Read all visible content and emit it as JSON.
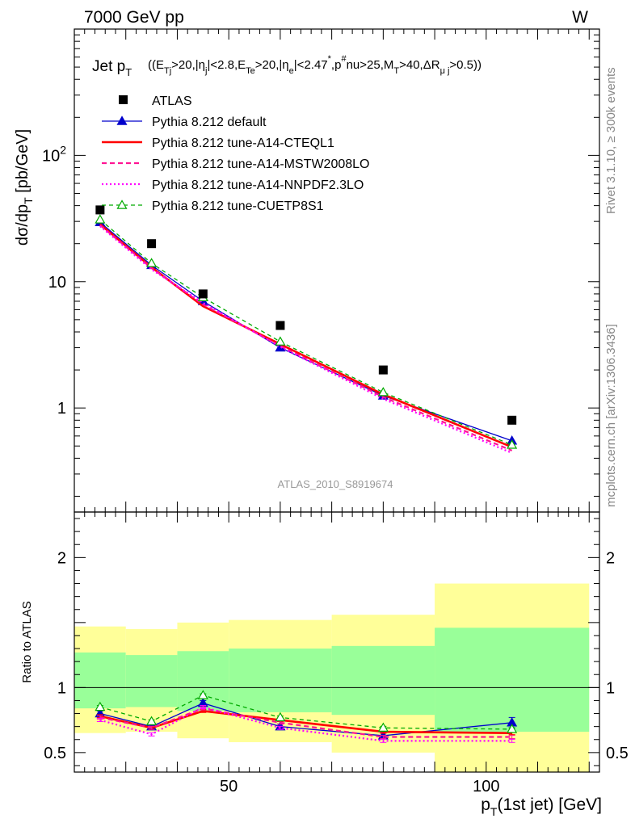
{
  "header": {
    "left": "7000 GeV pp",
    "right": "W"
  },
  "title": {
    "main": "Jet p",
    "main_sub": "T",
    "cuts": "((E",
    "cuts_parts": [
      {
        "t": "((E",
        "s": ""
      },
      {
        "t": "Tj",
        "s": "sub"
      },
      {
        "t": ">20,|η",
        "s": ""
      },
      {
        "t": "j",
        "s": "sub"
      },
      {
        "t": "|<2.8,E",
        "s": ""
      },
      {
        "t": "Te",
        "s": "sub"
      },
      {
        "t": ">20,|η",
        "s": ""
      },
      {
        "t": "e",
        "s": "sub"
      },
      {
        "t": "|<2.47",
        "s": ""
      },
      {
        "t": "*",
        "s": "sup"
      },
      {
        "t": ",p",
        "s": ""
      },
      {
        "t": "#",
        "s": "sup"
      },
      {
        "t": "nu>25,M",
        "s": ""
      },
      {
        "t": "T",
        "s": "sub"
      },
      {
        "t": ">40,ΔR",
        "s": ""
      },
      {
        "t": "μ j",
        "s": "sub"
      },
      {
        "t": ">0.5))",
        "s": ""
      }
    ]
  },
  "side_labels": {
    "rivet": "Rivet 3.1.10, ≥ 300k events",
    "mcplots": "mcplots.cern.ch [arXiv:1306.3436]"
  },
  "analysis_label": "ATLAS_2010_S8919674",
  "colors": {
    "atlas": "#000000",
    "default": "#0000cc",
    "cteql1": "#ff0000",
    "mstw": "#ff1493",
    "nnpdf": "#ff00ff",
    "cuetp": "#00aa00",
    "band_yellow": "#ffff99",
    "band_green": "#99ff99"
  },
  "chart_data": [
    {
      "type": "line",
      "panel": "main",
      "ylabel": "dσ/dp_T [pb/GeV]",
      "ylabel_parts": {
        "a": "dσ/dp",
        "sub": "T",
        "b": " [pb/GeV]"
      },
      "xlim": [
        20,
        122
      ],
      "ylim": [
        0.15,
        1000
      ],
      "yscale": "log",
      "y_ticks": [
        {
          "v": 1,
          "label": "1"
        },
        {
          "v": 10,
          "label": "10"
        },
        {
          "v": 100,
          "label": "10",
          "sup": "2"
        }
      ],
      "x": [
        25,
        35,
        45,
        60,
        80,
        105
      ],
      "data": {
        "name": "ATLAS",
        "values": [
          37,
          20,
          8.0,
          4.5,
          2.0,
          0.8
        ]
      },
      "series": [
        {
          "name": "Pythia 8.212 default",
          "key": "default",
          "values": [
            29.5,
            13.5,
            7.0,
            3.0,
            1.25,
            0.55
          ],
          "errors": [
            0,
            0,
            0,
            0,
            0.05,
            0.03
          ]
        },
        {
          "name": "Pythia 8.212 tune-A14-CTEQL1",
          "key": "cteql1",
          "values": [
            28.5,
            13.0,
            6.4,
            3.2,
            1.28,
            0.49
          ]
        },
        {
          "name": "Pythia 8.212 tune-A14-MSTW2008LO",
          "key": "mstw",
          "values": [
            28.0,
            12.8,
            6.6,
            3.1,
            1.22,
            0.46
          ]
        },
        {
          "name": "Pythia 8.212 tune-A14-NNPDF2.3LO",
          "key": "nnpdf",
          "values": [
            27.5,
            12.5,
            6.8,
            3.05,
            1.18,
            0.44
          ]
        },
        {
          "name": "Pythia 8.212 tune-CUETP8S1",
          "key": "cuetp",
          "values": [
            31.0,
            14.0,
            7.5,
            3.35,
            1.33,
            0.51
          ]
        }
      ],
      "legend_position": "top-left"
    },
    {
      "type": "line",
      "panel": "ratio",
      "ylabel": "Ratio to ATLAS",
      "xlabel": "p_T(1st jet) [GeV]",
      "xlabel_parts": {
        "a": "p",
        "sub": "T",
        "b": "(1st jet) [GeV]"
      },
      "xlim": [
        20,
        122
      ],
      "ylim": [
        0.35,
        2.35
      ],
      "x_ticks": [
        50,
        100
      ],
      "y_ticks": [
        0.5,
        1,
        2
      ],
      "y_tick_labels": [
        "0.5",
        "1",
        "2"
      ],
      "bins": [
        {
          "lo": 20,
          "hi": 30,
          "yellow": [
            0.65,
            1.47
          ],
          "green": [
            0.84,
            1.27
          ]
        },
        {
          "lo": 30,
          "hi": 40,
          "yellow": [
            0.66,
            1.45
          ],
          "green": [
            0.85,
            1.25
          ]
        },
        {
          "lo": 40,
          "hi": 50,
          "yellow": [
            0.61,
            1.5
          ],
          "green": [
            0.82,
            1.28
          ]
        },
        {
          "lo": 50,
          "hi": 70,
          "yellow": [
            0.58,
            1.52
          ],
          "green": [
            0.81,
            1.3
          ]
        },
        {
          "lo": 70,
          "hi": 90,
          "yellow": [
            0.5,
            1.56
          ],
          "green": [
            0.79,
            1.32
          ]
        },
        {
          "lo": 90,
          "hi": 120,
          "yellow": [
            0.35,
            1.8
          ],
          "green": [
            0.66,
            1.46
          ]
        }
      ],
      "x": [
        25,
        35,
        45,
        60,
        80,
        105
      ],
      "series": [
        {
          "key": "default",
          "values": [
            0.8,
            0.7,
            0.88,
            0.7,
            0.63,
            0.73
          ],
          "errors": [
            0.02,
            0.02,
            0.02,
            0.02,
            0.02,
            0.04
          ]
        },
        {
          "key": "cteql1",
          "values": [
            0.78,
            0.69,
            0.82,
            0.75,
            0.66,
            0.65
          ]
        },
        {
          "key": "mstw",
          "values": [
            0.77,
            0.69,
            0.84,
            0.73,
            0.62,
            0.62
          ]
        },
        {
          "key": "nnpdf",
          "values": [
            0.75,
            0.64,
            0.85,
            0.69,
            0.59,
            0.59
          ]
        },
        {
          "key": "cuetp",
          "values": [
            0.85,
            0.74,
            0.94,
            0.77,
            0.69,
            0.68
          ]
        }
      ]
    }
  ]
}
